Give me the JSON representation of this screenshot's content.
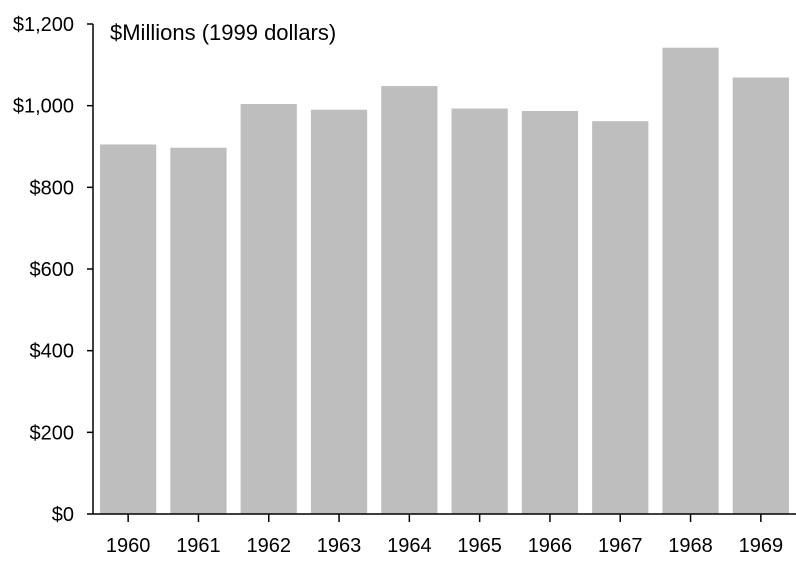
{
  "chart_data": {
    "type": "bar",
    "unit_label": "$Millions (1999 dollars)",
    "categories": [
      "1960",
      "1961",
      "1962",
      "1963",
      "1964",
      "1965",
      "1966",
      "1967",
      "1968",
      "1969"
    ],
    "values": [
      905,
      897,
      1004,
      990,
      1048,
      993,
      987,
      962,
      1142,
      1069
    ],
    "ylim": [
      0,
      1200
    ],
    "yticks": [
      0,
      200,
      400,
      600,
      800,
      1000,
      1200
    ],
    "ytick_labels": [
      "$0",
      "$200",
      "$400",
      "$600",
      "$800",
      "$1,000",
      "$1,200"
    ],
    "grid": false,
    "bar_color": "#bebebe"
  }
}
